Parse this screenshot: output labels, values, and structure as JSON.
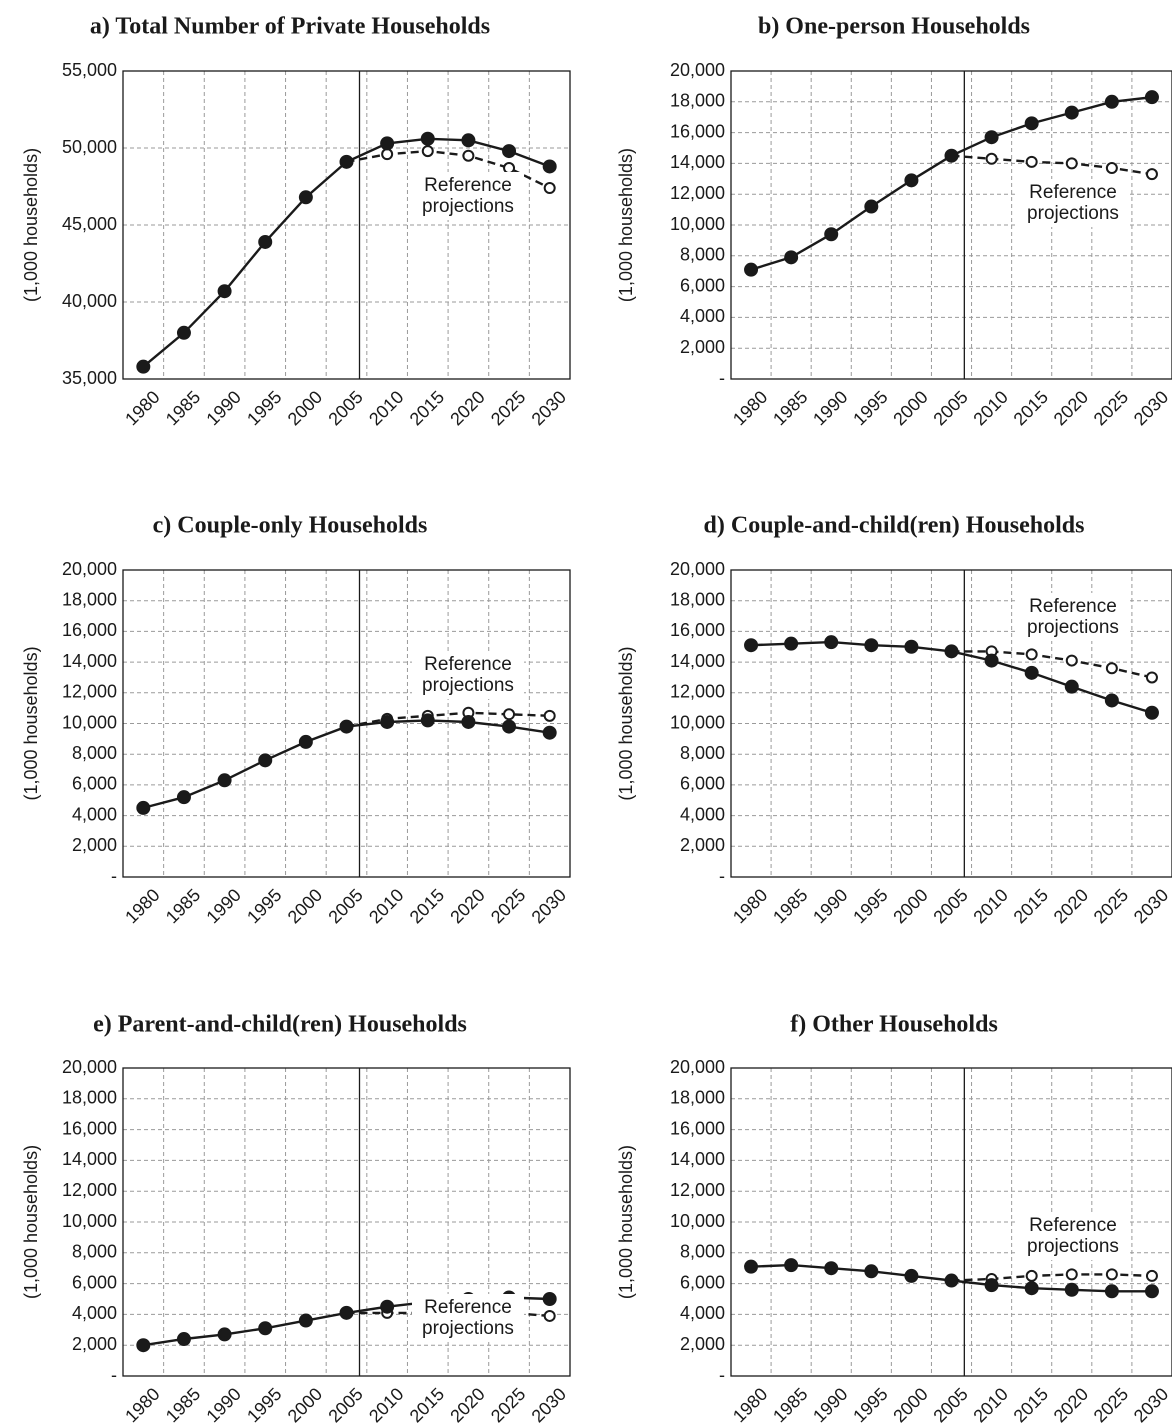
{
  "chart_data": [
    {
      "type": "line",
      "title": "a) Total Number of Private Households",
      "ylabel": "(1,000 households)",
      "categories": [
        "1980",
        "1985",
        "1990",
        "1995",
        "2000",
        "2005",
        "2010",
        "2015",
        "2020",
        "2025",
        "2030"
      ],
      "y_tick_labels": [
        "35,000",
        "40,000",
        "45,000",
        "50,000",
        "55,000"
      ],
      "ylim": [
        35000,
        55000
      ],
      "annotation": [
        "Reference",
        "projections"
      ],
      "series": [
        {
          "style": "solid-filled",
          "x": [
            1980,
            1985,
            1990,
            1995,
            2000,
            2005,
            2010,
            2015,
            2020,
            2025,
            2030
          ],
          "values": [
            35800,
            38000,
            40700,
            43900,
            46800,
            49100,
            50300,
            50600,
            50500,
            49800,
            48800
          ]
        },
        {
          "style": "dashed-open",
          "x": [
            2005,
            2010,
            2015,
            2020,
            2025,
            2030
          ],
          "values": [
            49100,
            49600,
            49800,
            49500,
            48700,
            47400
          ]
        }
      ]
    },
    {
      "type": "line",
      "title": "b) One-person Households",
      "ylabel": "(1,000 households)",
      "categories": [
        "1980",
        "1985",
        "1990",
        "1995",
        "2000",
        "2005",
        "2010",
        "2015",
        "2020",
        "2025",
        "2030"
      ],
      "y_tick_labels": [
        "-",
        "2,000",
        "4,000",
        "6,000",
        "8,000",
        "10,000",
        "12,000",
        "14,000",
        "16,000",
        "18,000",
        "20,000"
      ],
      "ylim": [
        0,
        20000
      ],
      "annotation": [
        "Reference",
        "projections"
      ],
      "series": [
        {
          "style": "solid-filled",
          "x": [
            1980,
            1985,
            1990,
            1995,
            2000,
            2005,
            2010,
            2015,
            2020,
            2025,
            2030
          ],
          "values": [
            7100,
            7900,
            9400,
            11200,
            12900,
            14500,
            15700,
            16600,
            17300,
            18000,
            18300
          ]
        },
        {
          "style": "dashed-open",
          "x": [
            2005,
            2010,
            2015,
            2020,
            2025,
            2030
          ],
          "values": [
            14500,
            14300,
            14100,
            14000,
            13700,
            13300
          ]
        }
      ]
    },
    {
      "type": "line",
      "title": "c) Couple-only Households",
      "ylabel": "(1,000 households)",
      "categories": [
        "1980",
        "1985",
        "1990",
        "1995",
        "2000",
        "2005",
        "2010",
        "2015",
        "2020",
        "2025",
        "2030"
      ],
      "y_tick_labels": [
        "-",
        "2,000",
        "4,000",
        "6,000",
        "8,000",
        "10,000",
        "12,000",
        "14,000",
        "16,000",
        "18,000",
        "20,000"
      ],
      "ylim": [
        0,
        20000
      ],
      "annotation": [
        "Reference",
        "projections"
      ],
      "series": [
        {
          "style": "solid-filled",
          "x": [
            1980,
            1985,
            1990,
            1995,
            2000,
            2005,
            2010,
            2015,
            2020,
            2025,
            2030
          ],
          "values": [
            4500,
            5200,
            6300,
            7600,
            8800,
            9800,
            10100,
            10200,
            10100,
            9800,
            9400
          ]
        },
        {
          "style": "dashed-open",
          "x": [
            2005,
            2010,
            2015,
            2020,
            2025,
            2030
          ],
          "values": [
            9800,
            10300,
            10500,
            10700,
            10600,
            10500
          ]
        }
      ]
    },
    {
      "type": "line",
      "title": "d) Couple-and-child(ren) Households",
      "ylabel": "(1,000 households)",
      "categories": [
        "1980",
        "1985",
        "1990",
        "1995",
        "2000",
        "2005",
        "2010",
        "2015",
        "2020",
        "2025",
        "2030"
      ],
      "y_tick_labels": [
        "-",
        "2,000",
        "4,000",
        "6,000",
        "8,000",
        "10,000",
        "12,000",
        "14,000",
        "16,000",
        "18,000",
        "20,000"
      ],
      "ylim": [
        0,
        20000
      ],
      "annotation": [
        "Reference",
        "projections"
      ],
      "series": [
        {
          "style": "solid-filled",
          "x": [
            1980,
            1985,
            1990,
            1995,
            2000,
            2005,
            2010,
            2015,
            2020,
            2025,
            2030
          ],
          "values": [
            15100,
            15200,
            15300,
            15100,
            15000,
            14700,
            14100,
            13300,
            12400,
            11500,
            10700
          ]
        },
        {
          "style": "dashed-open",
          "x": [
            2005,
            2010,
            2015,
            2020,
            2025,
            2030
          ],
          "values": [
            14700,
            14700,
            14500,
            14100,
            13600,
            13000
          ]
        }
      ]
    },
    {
      "type": "line",
      "title": "e) Parent-and-child(ren) Households",
      "ylabel": "(1,000 households)",
      "categories": [
        "1980",
        "1985",
        "1990",
        "1995",
        "2000",
        "2005",
        "2010",
        "2015",
        "2020",
        "2025",
        "2030"
      ],
      "y_tick_labels": [
        "-",
        "2,000",
        "4,000",
        "6,000",
        "8,000",
        "10,000",
        "12,000",
        "14,000",
        "16,000",
        "18,000",
        "20,000"
      ],
      "ylim": [
        0,
        20000
      ],
      "annotation": [
        "Reference",
        "projections"
      ],
      "series": [
        {
          "style": "solid-filled",
          "x": [
            1980,
            1985,
            1990,
            1995,
            2000,
            2005,
            2010,
            2015,
            2020,
            2025,
            2030
          ],
          "values": [
            2000,
            2400,
            2700,
            3100,
            3600,
            4100,
            4500,
            4800,
            5000,
            5100,
            5000
          ]
        },
        {
          "style": "dashed-open",
          "x": [
            2005,
            2010,
            2015,
            2020,
            2025,
            2030
          ],
          "values": [
            4100,
            4100,
            4100,
            4100,
            4100,
            3900
          ]
        }
      ]
    },
    {
      "type": "line",
      "title": "f) Other Households",
      "ylabel": "(1,000 households)",
      "categories": [
        "1980",
        "1985",
        "1990",
        "1995",
        "2000",
        "2005",
        "2010",
        "2015",
        "2020",
        "2025",
        "2030"
      ],
      "y_tick_labels": [
        "-",
        "2,000",
        "4,000",
        "6,000",
        "8,000",
        "10,000",
        "12,000",
        "14,000",
        "16,000",
        "18,000",
        "20,000"
      ],
      "ylim": [
        0,
        20000
      ],
      "annotation": [
        "Reference",
        "projections"
      ],
      "series": [
        {
          "style": "solid-filled",
          "x": [
            1980,
            1985,
            1990,
            1995,
            2000,
            2005,
            2010,
            2015,
            2020,
            2025,
            2030
          ],
          "values": [
            7100,
            7200,
            7000,
            6800,
            6500,
            6200,
            5900,
            5700,
            5600,
            5500,
            5500
          ]
        },
        {
          "style": "dashed-open",
          "x": [
            2005,
            2010,
            2015,
            2020,
            2025,
            2030
          ],
          "values": [
            6200,
            6300,
            6500,
            6600,
            6600,
            6500
          ]
        }
      ]
    }
  ]
}
